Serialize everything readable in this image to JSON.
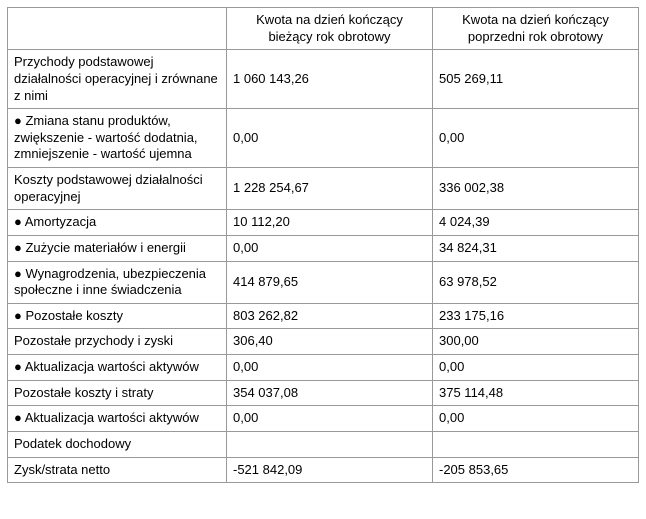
{
  "table": {
    "headers": [
      "",
      "Kwota na dzień kończący bieżący rok obrotowy",
      "Kwota na dzień kończący poprzedni rok obrotowy"
    ],
    "rows": [
      {
        "label": "Przychody podstawowej działalności operacyjnej i zrównane z nimi",
        "current": "1 060 143,26",
        "previous": "505 269,11"
      },
      {
        "label": "● Zmiana stanu produktów, zwiększenie - wartość dodatnia, zmniejszenie - wartość ujemna",
        "current": "0,00",
        "previous": "0,00"
      },
      {
        "label": "Koszty podstawowej działalności operacyjnej",
        "current": "1 228 254,67",
        "previous": "336 002,38"
      },
      {
        "label": "● Amortyzacja",
        "current": "10 112,20",
        "previous": "4 024,39"
      },
      {
        "label": "● Zużycie materiałów i energii",
        "current": "0,00",
        "previous": "34 824,31"
      },
      {
        "label": "● Wynagrodzenia, ubezpieczenia społeczne i inne świadczenia",
        "current": "414 879,65",
        "previous": "63 978,52"
      },
      {
        "label": "● Pozostałe koszty",
        "current": "803 262,82",
        "previous": "233 175,16"
      },
      {
        "label": "Pozostałe przychody i zyski",
        "current": "306,40",
        "previous": "300,00"
      },
      {
        "label": "● Aktualizacja wartości aktywów",
        "current": "0,00",
        "previous": "0,00"
      },
      {
        "label": "Pozostałe koszty i straty",
        "current": "354 037,08",
        "previous": "375 114,48"
      },
      {
        "label": "● Aktualizacja wartości aktywów",
        "current": "0,00",
        "previous": "0,00"
      },
      {
        "label": "Podatek dochodowy",
        "current": "",
        "previous": ""
      },
      {
        "label": "Zysk/strata netto",
        "current": "-521 842,09",
        "previous": "-205 853,65"
      }
    ],
    "colors": {
      "border": "#999999",
      "text": "#000000",
      "background": "#ffffff"
    }
  }
}
